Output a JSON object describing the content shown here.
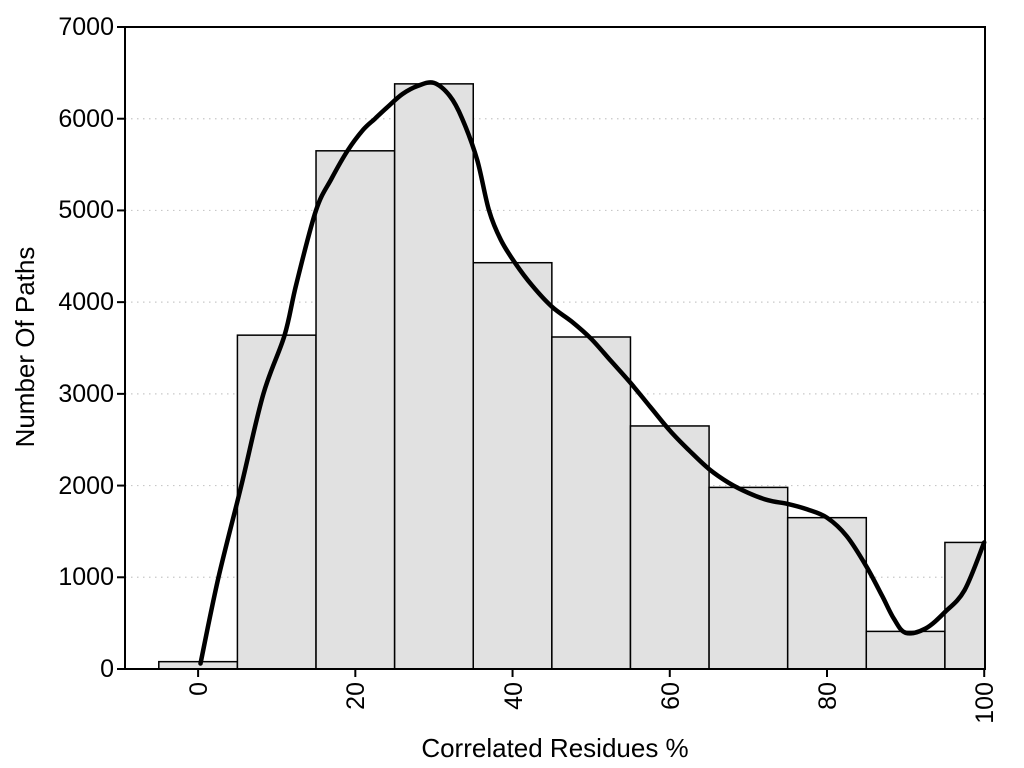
{
  "chart_data": {
    "type": "bar",
    "subtype": "histogram-with-density-curve",
    "xlabel": "Correlated Residues %",
    "ylabel": "Number Of Paths",
    "categories": [
      0,
      10,
      20,
      30,
      40,
      50,
      60,
      70,
      80,
      90,
      100
    ],
    "values": [
      80,
      3640,
      5650,
      6380,
      4430,
      3620,
      2650,
      1980,
      1650,
      410,
      1380
    ],
    "bin_width": 10,
    "x_ticks": [
      "0",
      "20",
      "40",
      "60",
      "80",
      "100"
    ],
    "y_ticks": [
      "0",
      "1000",
      "2000",
      "3000",
      "4000",
      "5000",
      "6000",
      "7000"
    ],
    "xlim": [
      -9.3,
      100.1
    ],
    "ylim": [
      0,
      7000
    ],
    "grid": "horizontal dotted lines at y = 1000..6000",
    "legend": "none",
    "series": [
      {
        "name": "histogram",
        "values": [
          80,
          3640,
          5650,
          6380,
          4430,
          3620,
          2650,
          1980,
          1650,
          410,
          1380
        ]
      },
      {
        "name": "density-curve",
        "points": [
          [
            0.3,
            60
          ],
          [
            2.6,
            1000
          ],
          [
            5.5,
            2000
          ],
          [
            8.3,
            3000
          ],
          [
            11,
            3640
          ],
          [
            12.5,
            4200
          ],
          [
            15,
            5000
          ],
          [
            17,
            5350
          ],
          [
            19,
            5650
          ],
          [
            21,
            5880
          ],
          [
            22.5,
            6000
          ],
          [
            24,
            6120
          ],
          [
            26,
            6270
          ],
          [
            28,
            6360
          ],
          [
            30,
            6390
          ],
          [
            32,
            6250
          ],
          [
            33.6,
            6000
          ],
          [
            35.5,
            5550
          ],
          [
            37,
            5000
          ],
          [
            38.5,
            4680
          ],
          [
            40.3,
            4430
          ],
          [
            42.5,
            4180
          ],
          [
            45,
            3950
          ],
          [
            47.5,
            3790
          ],
          [
            50,
            3600
          ],
          [
            52.5,
            3360
          ],
          [
            55,
            3120
          ],
          [
            57.5,
            2860
          ],
          [
            60,
            2600
          ],
          [
            62.5,
            2380
          ],
          [
            65,
            2180
          ],
          [
            67.5,
            2030
          ],
          [
            70,
            1920
          ],
          [
            72.5,
            1840
          ],
          [
            75,
            1800
          ],
          [
            77.5,
            1740
          ],
          [
            80,
            1650
          ],
          [
            82.5,
            1450
          ],
          [
            85,
            1120
          ],
          [
            87,
            800
          ],
          [
            88.5,
            550
          ],
          [
            90,
            395
          ],
          [
            92.5,
            440
          ],
          [
            95,
            620
          ],
          [
            97.5,
            860
          ],
          [
            100,
            1380
          ]
        ]
      }
    ],
    "colors": {
      "bar_fill": "#e1e1e1",
      "bar_border": "#000000",
      "curve": "#000000",
      "grid": "#c8c8c8",
      "axis": "#000000",
      "background": "#ffffff"
    }
  }
}
